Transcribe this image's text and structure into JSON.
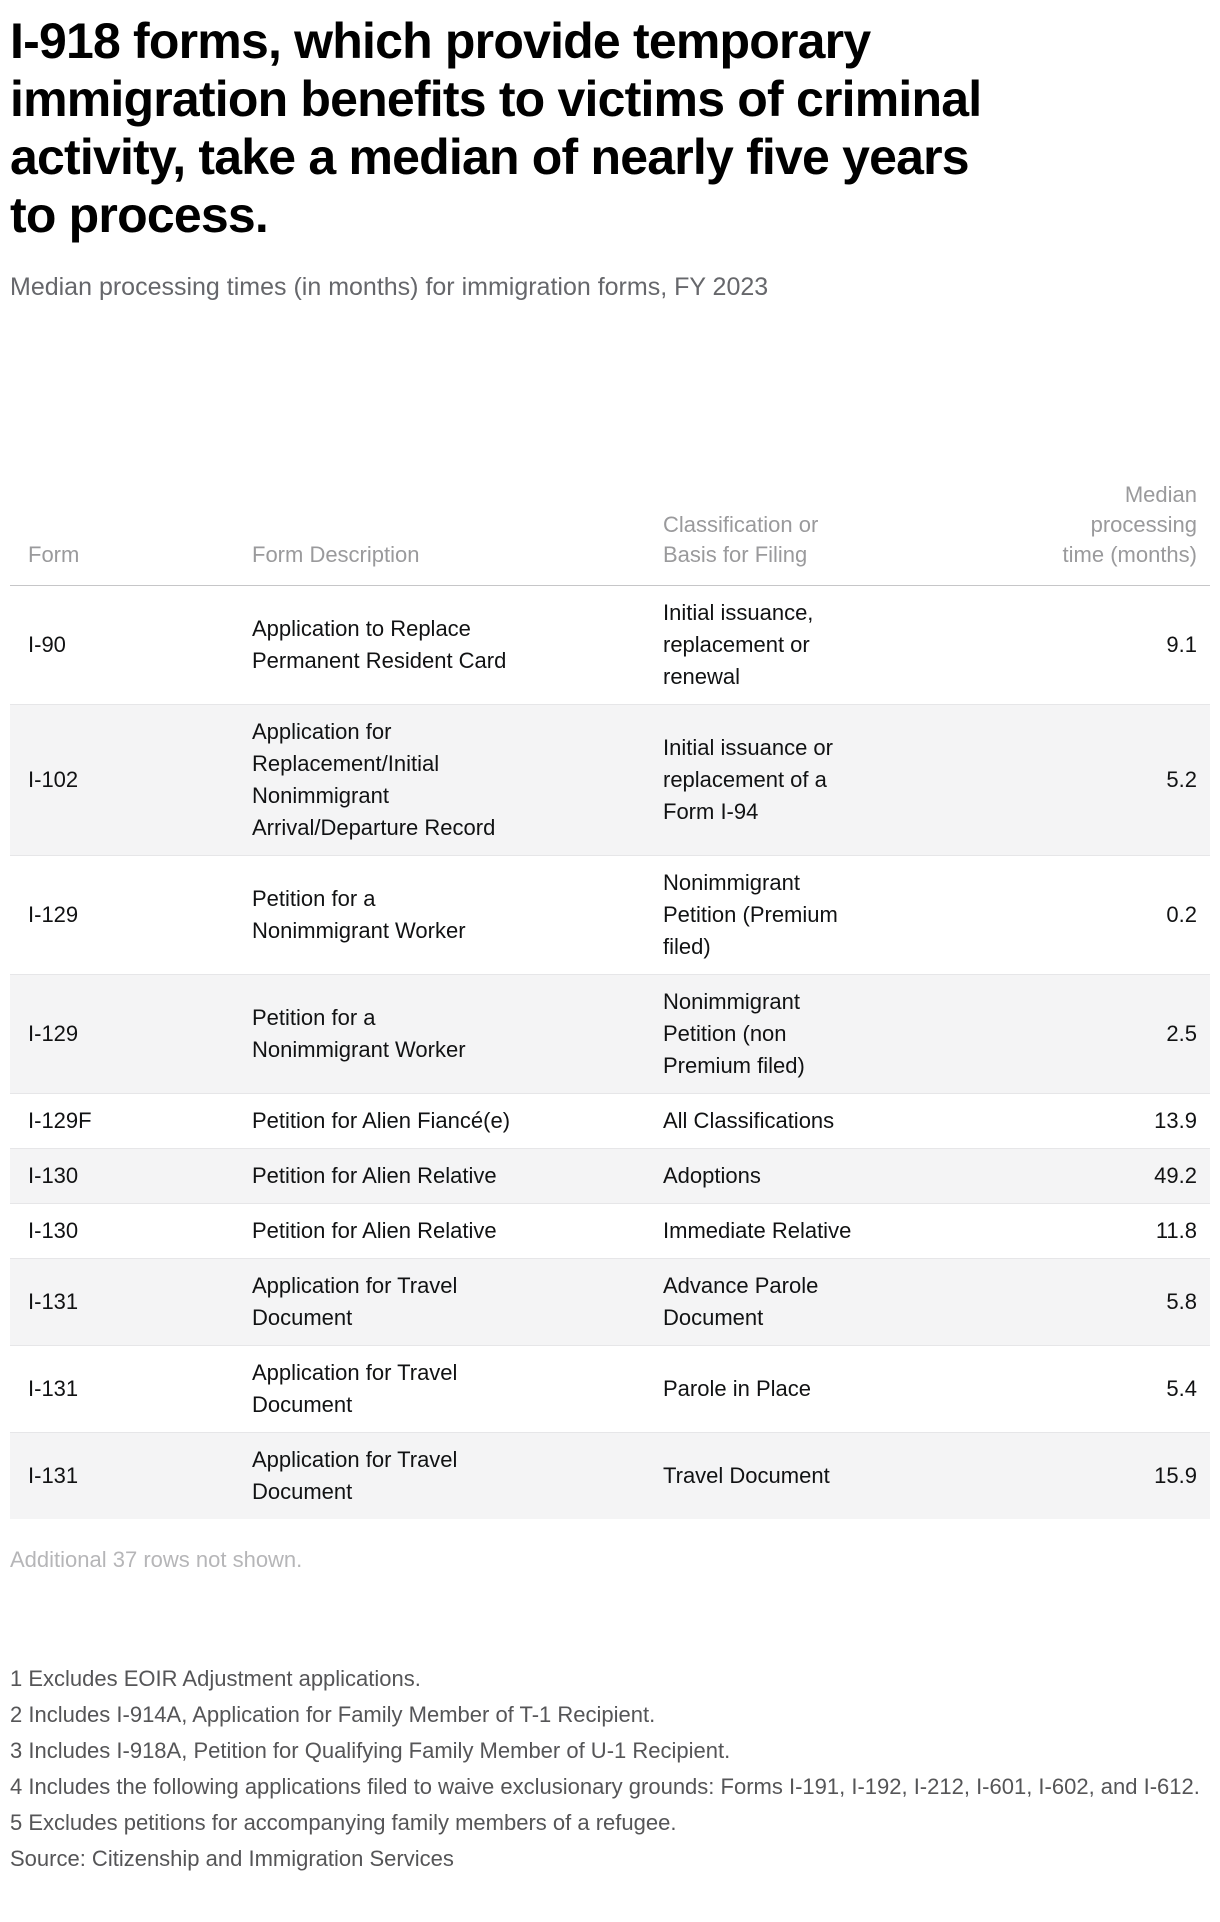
{
  "page": {
    "title": "I-918 forms, which provide temporary\nimmigration benefits to victims of criminal\nactivity, take a median of nearly five years\nto process.",
    "subtitle": "Median processing times (in months) for immigration forms, FY 2023"
  },
  "table": {
    "columns": [
      {
        "label": "Form"
      },
      {
        "label": "Form Description"
      },
      {
        "label": "Classification or\nBasis for Filing"
      },
      {
        "label": "Median\nprocessing\ntime (months)"
      }
    ],
    "rows": [
      {
        "form": "I-90",
        "description": "Application to Replace\nPermanent Resident Card",
        "classification": "Initial issuance,\nreplacement or\nrenewal",
        "median": "9.1"
      },
      {
        "form": "I-102",
        "description": "Application for\nReplacement/Initial\nNonimmigrant\nArrival/Departure Record",
        "classification": "Initial issuance or\nreplacement of a\nForm I-94",
        "median": "5.2"
      },
      {
        "form": "I-129",
        "description": "Petition for a\nNonimmigrant Worker",
        "classification": "Nonimmigrant\nPetition (Premium\nfiled)",
        "median": "0.2"
      },
      {
        "form": "I-129",
        "description": "Petition for a\nNonimmigrant Worker",
        "classification": "Nonimmigrant\nPetition (non\nPremium filed)",
        "median": "2.5"
      },
      {
        "form": "I-129F",
        "description": "Petition for Alien Fiancé(e)",
        "classification": "All Classifications",
        "median": "13.9"
      },
      {
        "form": "I-130",
        "description": "Petition for Alien Relative",
        "classification": "Adoptions",
        "median": "49.2"
      },
      {
        "form": "I-130",
        "description": "Petition for Alien Relative",
        "classification": "Immediate Relative",
        "median": "11.8"
      },
      {
        "form": "I-131",
        "description": "Application for Travel\nDocument",
        "classification": "Advance Parole\nDocument",
        "median": "5.8"
      },
      {
        "form": "I-131",
        "description": "Application for Travel\nDocument",
        "classification": "Parole in Place",
        "median": "5.4"
      },
      {
        "form": "I-131",
        "description": "Application for Travel\nDocument",
        "classification": "Travel Document",
        "median": "15.9"
      }
    ],
    "truncation_note": "Additional 37 rows not shown."
  },
  "footnotes": [
    "1 Excludes EOIR Adjustment applications.",
    "2 Includes I-914A, Application for Family Member of T-1 Recipient.",
    "3 Includes I-918A, Petition for Qualifying Family Member of U-1 Recipient.",
    "4 Includes the following applications filed to waive exclusionary grounds: Forms I-191, I-192, I-212, I-601, I-602, and I-612.",
    "5 Excludes petitions for accompanying family members of a refugee."
  ],
  "source": "Source: Citizenship and Immigration Services",
  "colors": {
    "title_text": "#000000",
    "subtitle_text": "#66676b",
    "header_text": "#9a9a9c",
    "body_text": "#111213",
    "row_alt_bg": "#f4f4f5",
    "row_border": "#e6e6e8",
    "header_border": "#c6c6c8",
    "note_text": "#b6b6b8",
    "footnote_text": "#555557"
  },
  "chart_data": {
    "type": "table",
    "title": "I-918 forms, which provide temporary immigration benefits to victims of criminal activity, take a median of nearly five years to process.",
    "subtitle": "Median processing times (in months) for immigration forms, FY 2023",
    "columns": [
      "Form",
      "Form Description",
      "Classification or Basis for Filing",
      "Median processing time (months)"
    ],
    "rows": [
      [
        "I-90",
        "Application to Replace Permanent Resident Card",
        "Initial issuance, replacement or renewal",
        9.1
      ],
      [
        "I-102",
        "Application for Replacement/Initial Nonimmigrant Arrival/Departure Record",
        "Initial issuance or replacement of a Form I-94",
        5.2
      ],
      [
        "I-129",
        "Petition for a Nonimmigrant Worker",
        "Nonimmigrant Petition (Premium filed)",
        0.2
      ],
      [
        "I-129",
        "Petition for a Nonimmigrant Worker",
        "Nonimmigrant Petition (non Premium filed)",
        2.5
      ],
      [
        "I-129F",
        "Petition for Alien Fiancé(e)",
        "All Classifications",
        13.9
      ],
      [
        "I-130",
        "Petition for Alien Relative",
        "Adoptions",
        49.2
      ],
      [
        "I-130",
        "Petition for Alien Relative",
        "Immediate Relative",
        11.8
      ],
      [
        "I-131",
        "Application for Travel Document",
        "Advance Parole Document",
        5.8
      ],
      [
        "I-131",
        "Application for Travel Document",
        "Parole in Place",
        5.4
      ],
      [
        "I-131",
        "Application for Travel Document",
        "Travel Document",
        15.9
      ]
    ],
    "truncation_note": "Additional 37 rows not shown.",
    "source": "Source: Citizenship and Immigration Services"
  }
}
